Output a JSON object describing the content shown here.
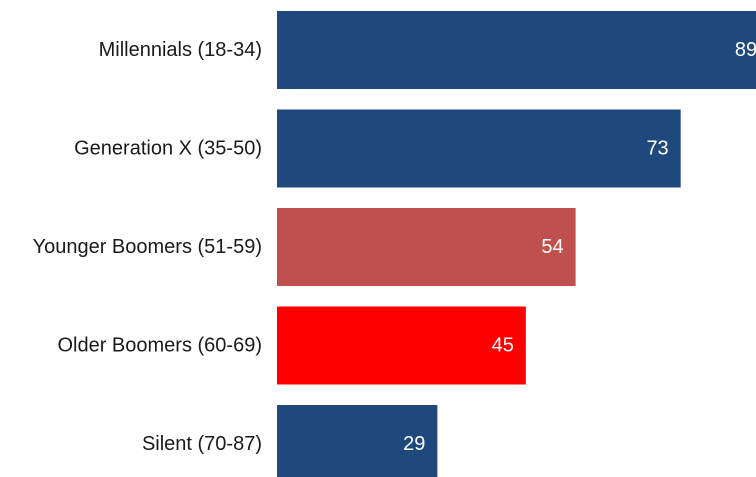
{
  "chart_data": {
    "type": "bar",
    "orientation": "horizontal",
    "title": "",
    "xlabel": "",
    "ylabel": "",
    "categories": [
      "Millennials (18-34)",
      "Generation X (35-50)",
      "Younger Boomers (51-59)",
      "Older Boomers (60-69)",
      "Silent (70-87)"
    ],
    "values": [
      89,
      73,
      54,
      45,
      29
    ],
    "colors": [
      "#1f497d",
      "#1f497d",
      "#c0504d",
      "#ff0000",
      "#1f497d"
    ],
    "grid": false,
    "legend": "none"
  }
}
